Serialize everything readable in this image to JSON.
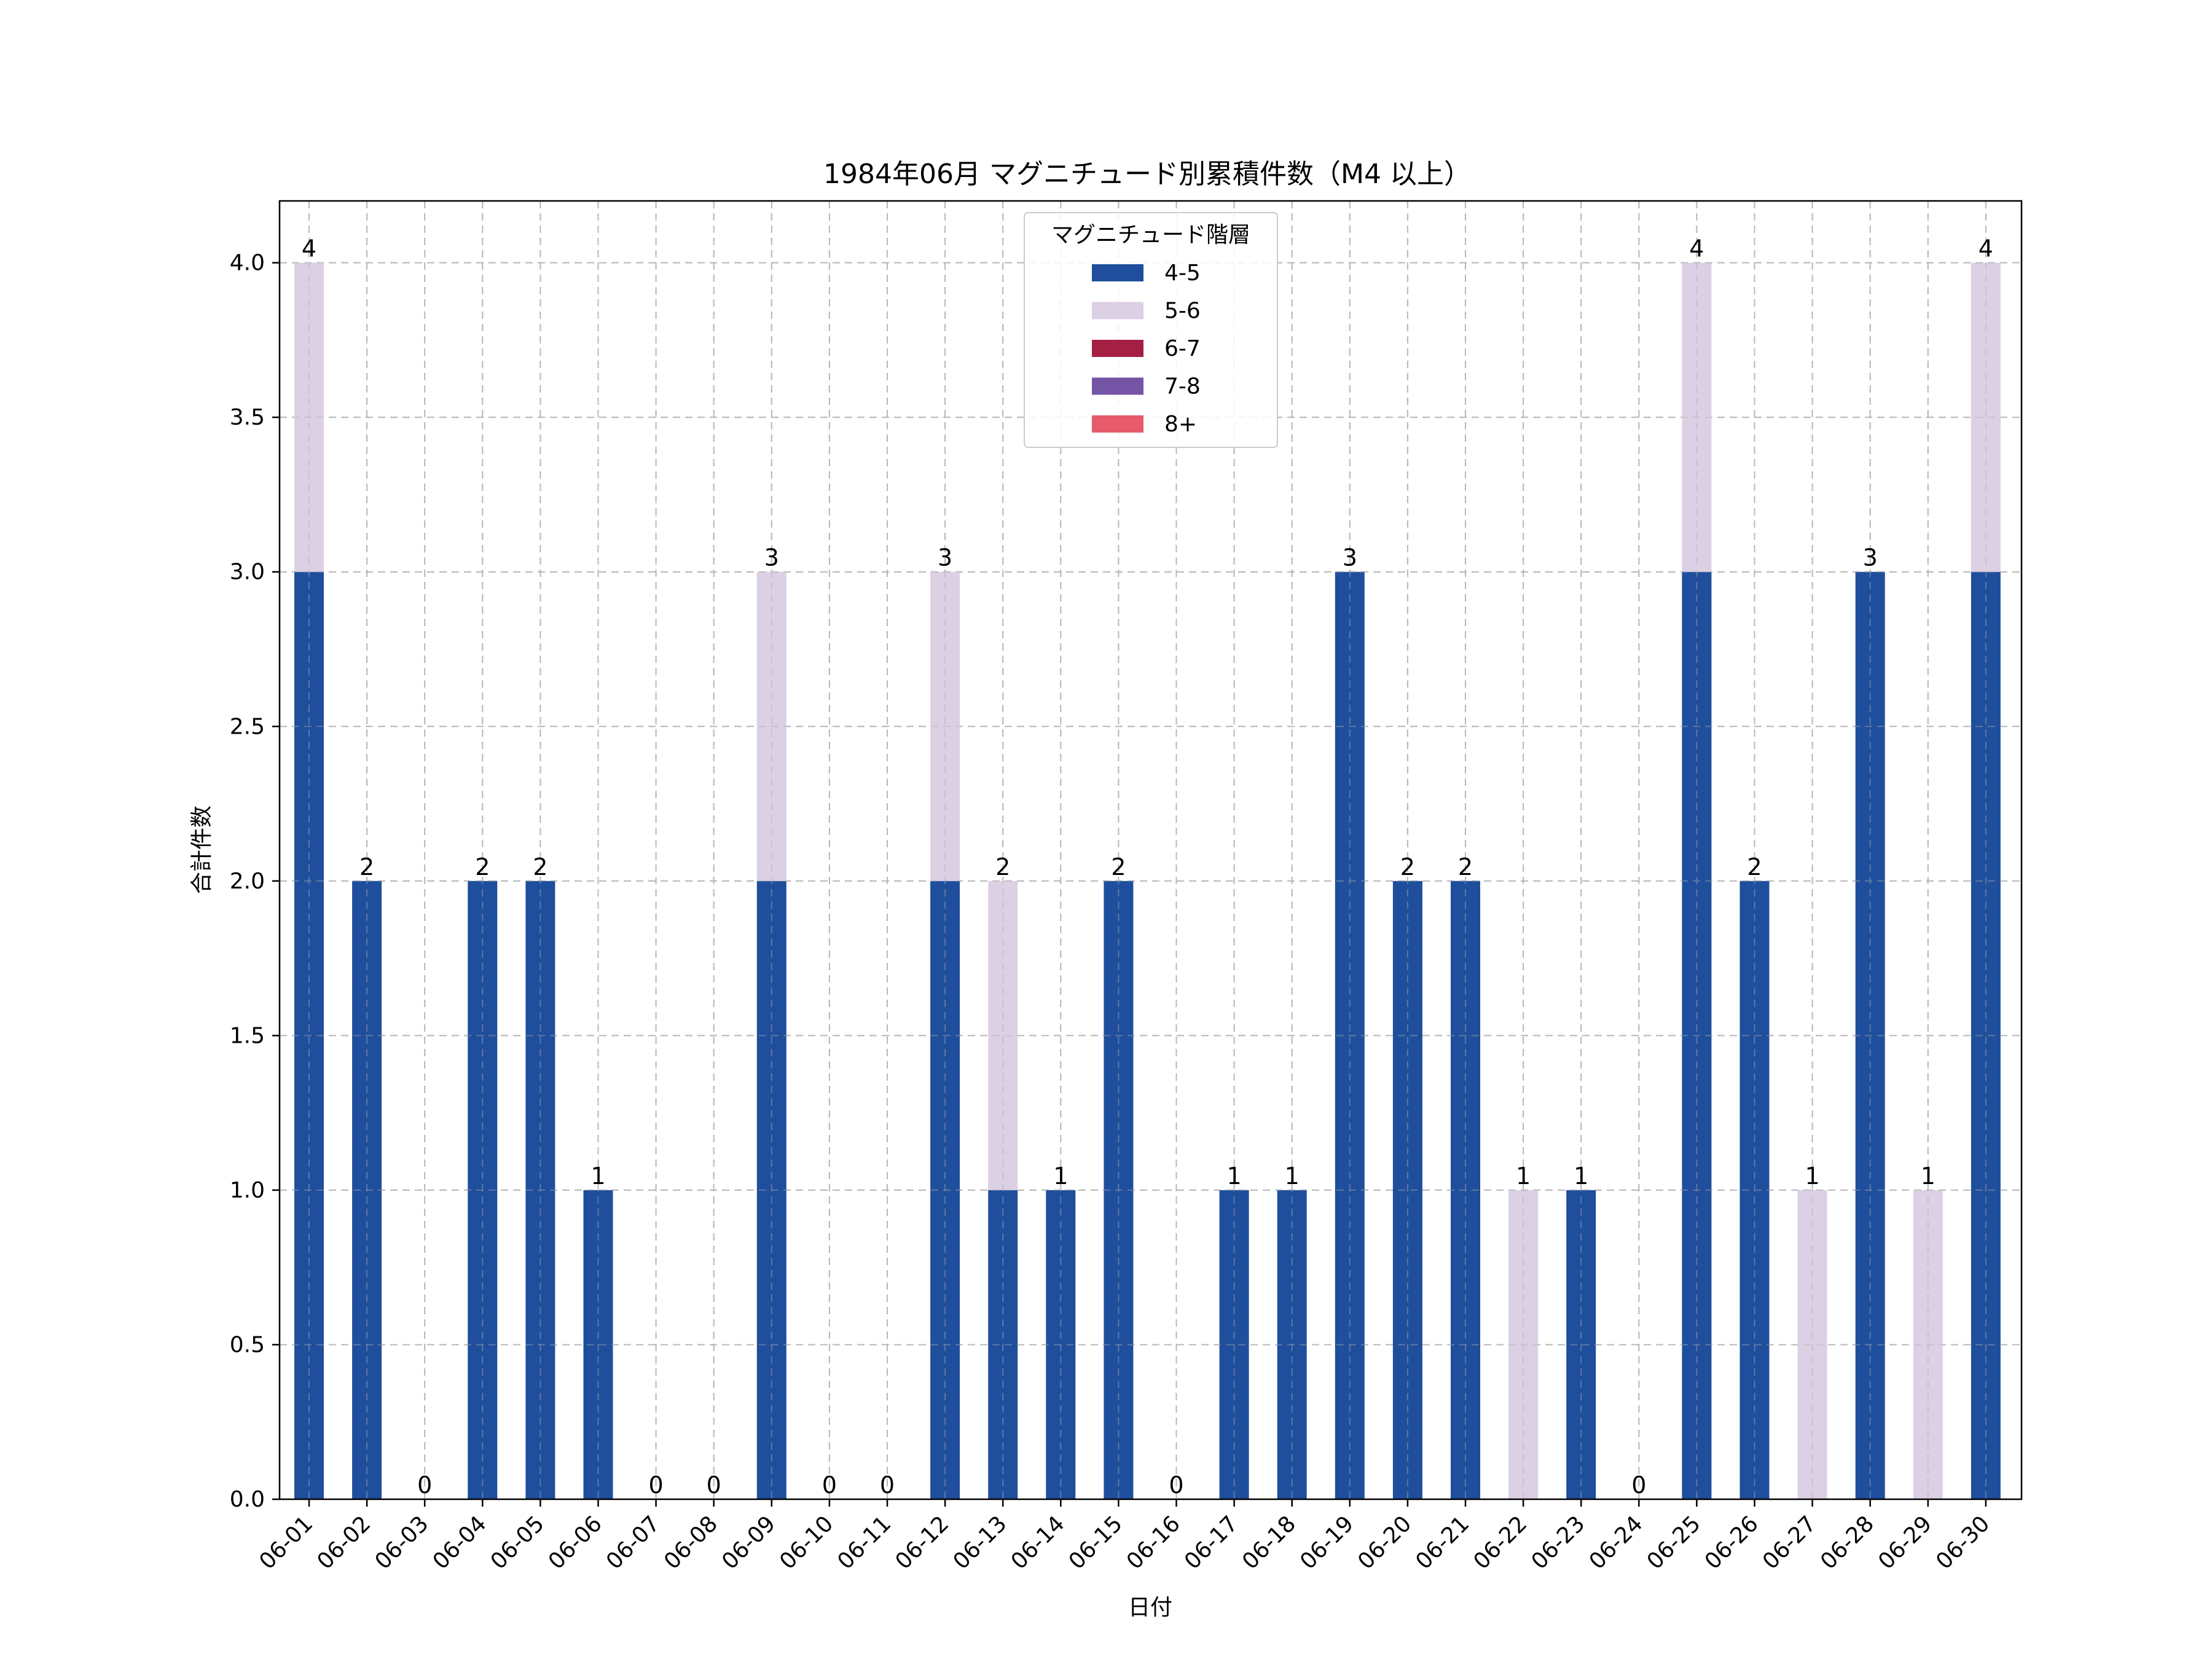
{
  "chart_data": {
    "type": "bar",
    "stacked": true,
    "title": "1984年06月 マグニチュード別累積件数（M4 以上）",
    "xlabel": "日付",
    "ylabel": "合計件数",
    "ylim": [
      0,
      4.2
    ],
    "yticks": [
      "0.0",
      "0.5",
      "1.0",
      "1.5",
      "2.0",
      "2.5",
      "3.0",
      "3.5",
      "4.0"
    ],
    "grid": true,
    "legend": {
      "title": "マグニチュード階層",
      "placement": "upper-center"
    },
    "categories": [
      "06-01",
      "06-02",
      "06-03",
      "06-04",
      "06-05",
      "06-06",
      "06-07",
      "06-08",
      "06-09",
      "06-10",
      "06-11",
      "06-12",
      "06-13",
      "06-14",
      "06-15",
      "06-16",
      "06-17",
      "06-18",
      "06-19",
      "06-20",
      "06-21",
      "06-22",
      "06-23",
      "06-24",
      "06-25",
      "06-26",
      "06-27",
      "06-28",
      "06-29",
      "06-30"
    ],
    "series": [
      {
        "name": "4-5",
        "color": "#1f4e9c",
        "values": [
          3,
          2,
          0,
          2,
          2,
          1,
          0,
          0,
          2,
          0,
          0,
          2,
          1,
          1,
          2,
          0,
          1,
          1,
          3,
          2,
          2,
          0,
          1,
          0,
          3,
          2,
          0,
          3,
          0,
          3
        ]
      },
      {
        "name": "5-6",
        "color": "#dcd0e4",
        "values": [
          1,
          0,
          0,
          0,
          0,
          0,
          0,
          0,
          1,
          0,
          0,
          1,
          1,
          0,
          0,
          0,
          0,
          0,
          0,
          0,
          0,
          1,
          0,
          0,
          1,
          0,
          1,
          0,
          1,
          1
        ]
      },
      {
        "name": "6-7",
        "color": "#a51f45",
        "values": [
          0,
          0,
          0,
          0,
          0,
          0,
          0,
          0,
          0,
          0,
          0,
          0,
          0,
          0,
          0,
          0,
          0,
          0,
          0,
          0,
          0,
          0,
          0,
          0,
          0,
          0,
          0,
          0,
          0,
          0
        ]
      },
      {
        "name": "7-8",
        "color": "#7455a5",
        "values": [
          0,
          0,
          0,
          0,
          0,
          0,
          0,
          0,
          0,
          0,
          0,
          0,
          0,
          0,
          0,
          0,
          0,
          0,
          0,
          0,
          0,
          0,
          0,
          0,
          0,
          0,
          0,
          0,
          0,
          0
        ]
      },
      {
        "name": "8+",
        "color": "#e65a6b",
        "values": [
          0,
          0,
          0,
          0,
          0,
          0,
          0,
          0,
          0,
          0,
          0,
          0,
          0,
          0,
          0,
          0,
          0,
          0,
          0,
          0,
          0,
          0,
          0,
          0,
          0,
          0,
          0,
          0,
          0,
          0
        ]
      }
    ],
    "totals": [
      4,
      2,
      0,
      2,
      2,
      1,
      0,
      0,
      3,
      0,
      0,
      3,
      2,
      1,
      2,
      0,
      1,
      1,
      3,
      2,
      2,
      1,
      1,
      0,
      4,
      2,
      1,
      3,
      1,
      4
    ]
  }
}
